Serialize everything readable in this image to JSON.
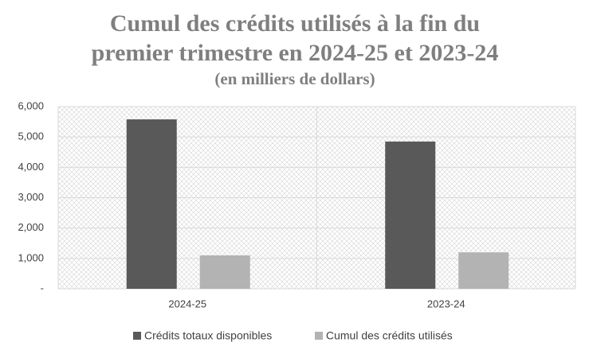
{
  "chart_data": {
    "type": "bar",
    "title": [
      "Cumul des crédits utilisés à la fin du",
      "premier trimestre en 2024-25 et 2023-24"
    ],
    "subtitle": "(en milliers de dollars)",
    "categories": [
      "2024-25",
      "2023-24"
    ],
    "series": [
      {
        "name": "Crédits totaux disponibles",
        "color": "#595959",
        "values": [
          5580,
          4850
        ]
      },
      {
        "name": "Cumul des crédits utilisés",
        "color": "#b3b3b3",
        "values": [
          1100,
          1200
        ]
      }
    ],
    "ylim": [
      0,
      6000
    ],
    "yticks": [
      {
        "value": 0,
        "label": "-"
      },
      {
        "value": 1000,
        "label": "1,000"
      },
      {
        "value": 2000,
        "label": "2,000"
      },
      {
        "value": 3000,
        "label": "3,000"
      },
      {
        "value": 4000,
        "label": "4,000"
      },
      {
        "value": 5000,
        "label": "5,000"
      },
      {
        "value": 6000,
        "label": "6,000"
      }
    ],
    "grid": true
  }
}
